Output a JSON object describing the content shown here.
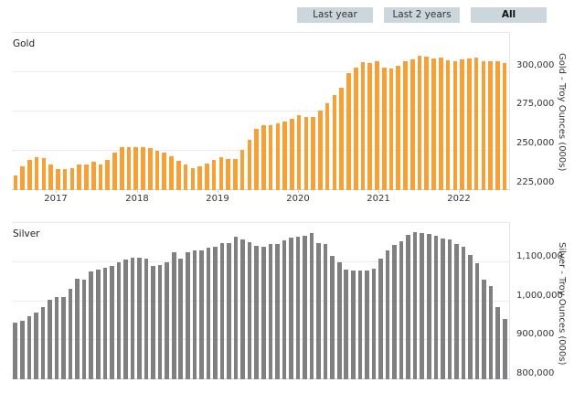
{
  "range_selector": {
    "buttons": [
      {
        "label": "Last year",
        "active": false
      },
      {
        "label": "Last 2 years",
        "active": false
      },
      {
        "label": "All",
        "active": true
      }
    ]
  },
  "colors": {
    "gold_bar": "#f7a035",
    "silver_bar": "#808080",
    "button_bg": "#ccd6dd",
    "gridline": "#ececec"
  },
  "chart_data": [
    {
      "type": "bar",
      "title": "Gold",
      "xlabel": "",
      "ylabel": "Gold - Troy Ounces (000s)",
      "ylim": [
        225000,
        312000
      ],
      "yticks": [
        "225,000",
        "250,000",
        "275,000",
        "300,000"
      ],
      "xticks": [
        "2017",
        "2018",
        "2019",
        "2020",
        "2021",
        "2022"
      ],
      "grid": true,
      "legend": null,
      "frequency": "monthly",
      "values": [
        234000,
        240000,
        244000,
        246000,
        245500,
        241000,
        238500,
        238500,
        239000,
        241000,
        241500,
        243000,
        241000,
        244000,
        249000,
        252000,
        252500,
        252000,
        252000,
        251500,
        250000,
        248500,
        246500,
        243500,
        241000,
        239000,
        240000,
        242000,
        244000,
        246000,
        245000,
        244500,
        250500,
        257000,
        264000,
        266000,
        266000,
        267500,
        268500,
        270500,
        272500,
        271500,
        271500,
        275500,
        280000,
        285500,
        290000,
        299000,
        303000,
        306000,
        305500,
        306500,
        302500,
        302000,
        304000,
        306500,
        308000,
        310000,
        309500,
        308500,
        309000,
        307500,
        306500,
        308000,
        308500,
        309000,
        307000,
        307000,
        307000,
        305500
      ]
    },
    {
      "type": "bar",
      "title": "Silver",
      "xlabel": "",
      "ylabel": "Silver - Troy Ounces (000s)",
      "ylim": [
        800000,
        1180000
      ],
      "yticks": [
        "800,000",
        "900,000",
        "1,000,000",
        "1,100,000"
      ],
      "xticks": [],
      "grid": true,
      "legend": null,
      "frequency": "monthly",
      "values": [
        946000,
        950000,
        962000,
        972000,
        985000,
        1003000,
        1012000,
        1012000,
        1033000,
        1057000,
        1055000,
        1076000,
        1081000,
        1087000,
        1092000,
        1101000,
        1108000,
        1112000,
        1112000,
        1109000,
        1090000,
        1094000,
        1101000,
        1127000,
        1109000,
        1126000,
        1130000,
        1130000,
        1137000,
        1140000,
        1150000,
        1150000,
        1165000,
        1160000,
        1152000,
        1142000,
        1140000,
        1148000,
        1148000,
        1156000,
        1164000,
        1166000,
        1168000,
        1175000,
        1150000,
        1148000,
        1117000,
        1100000,
        1082000,
        1080000,
        1078000,
        1078000,
        1084000,
        1110000,
        1130000,
        1144000,
        1155000,
        1170000,
        1178000,
        1176000,
        1172000,
        1168000,
        1162000,
        1158000,
        1148000,
        1140000,
        1120000,
        1098000,
        1055000,
        1040000,
        985000,
        955000
      ]
    }
  ]
}
